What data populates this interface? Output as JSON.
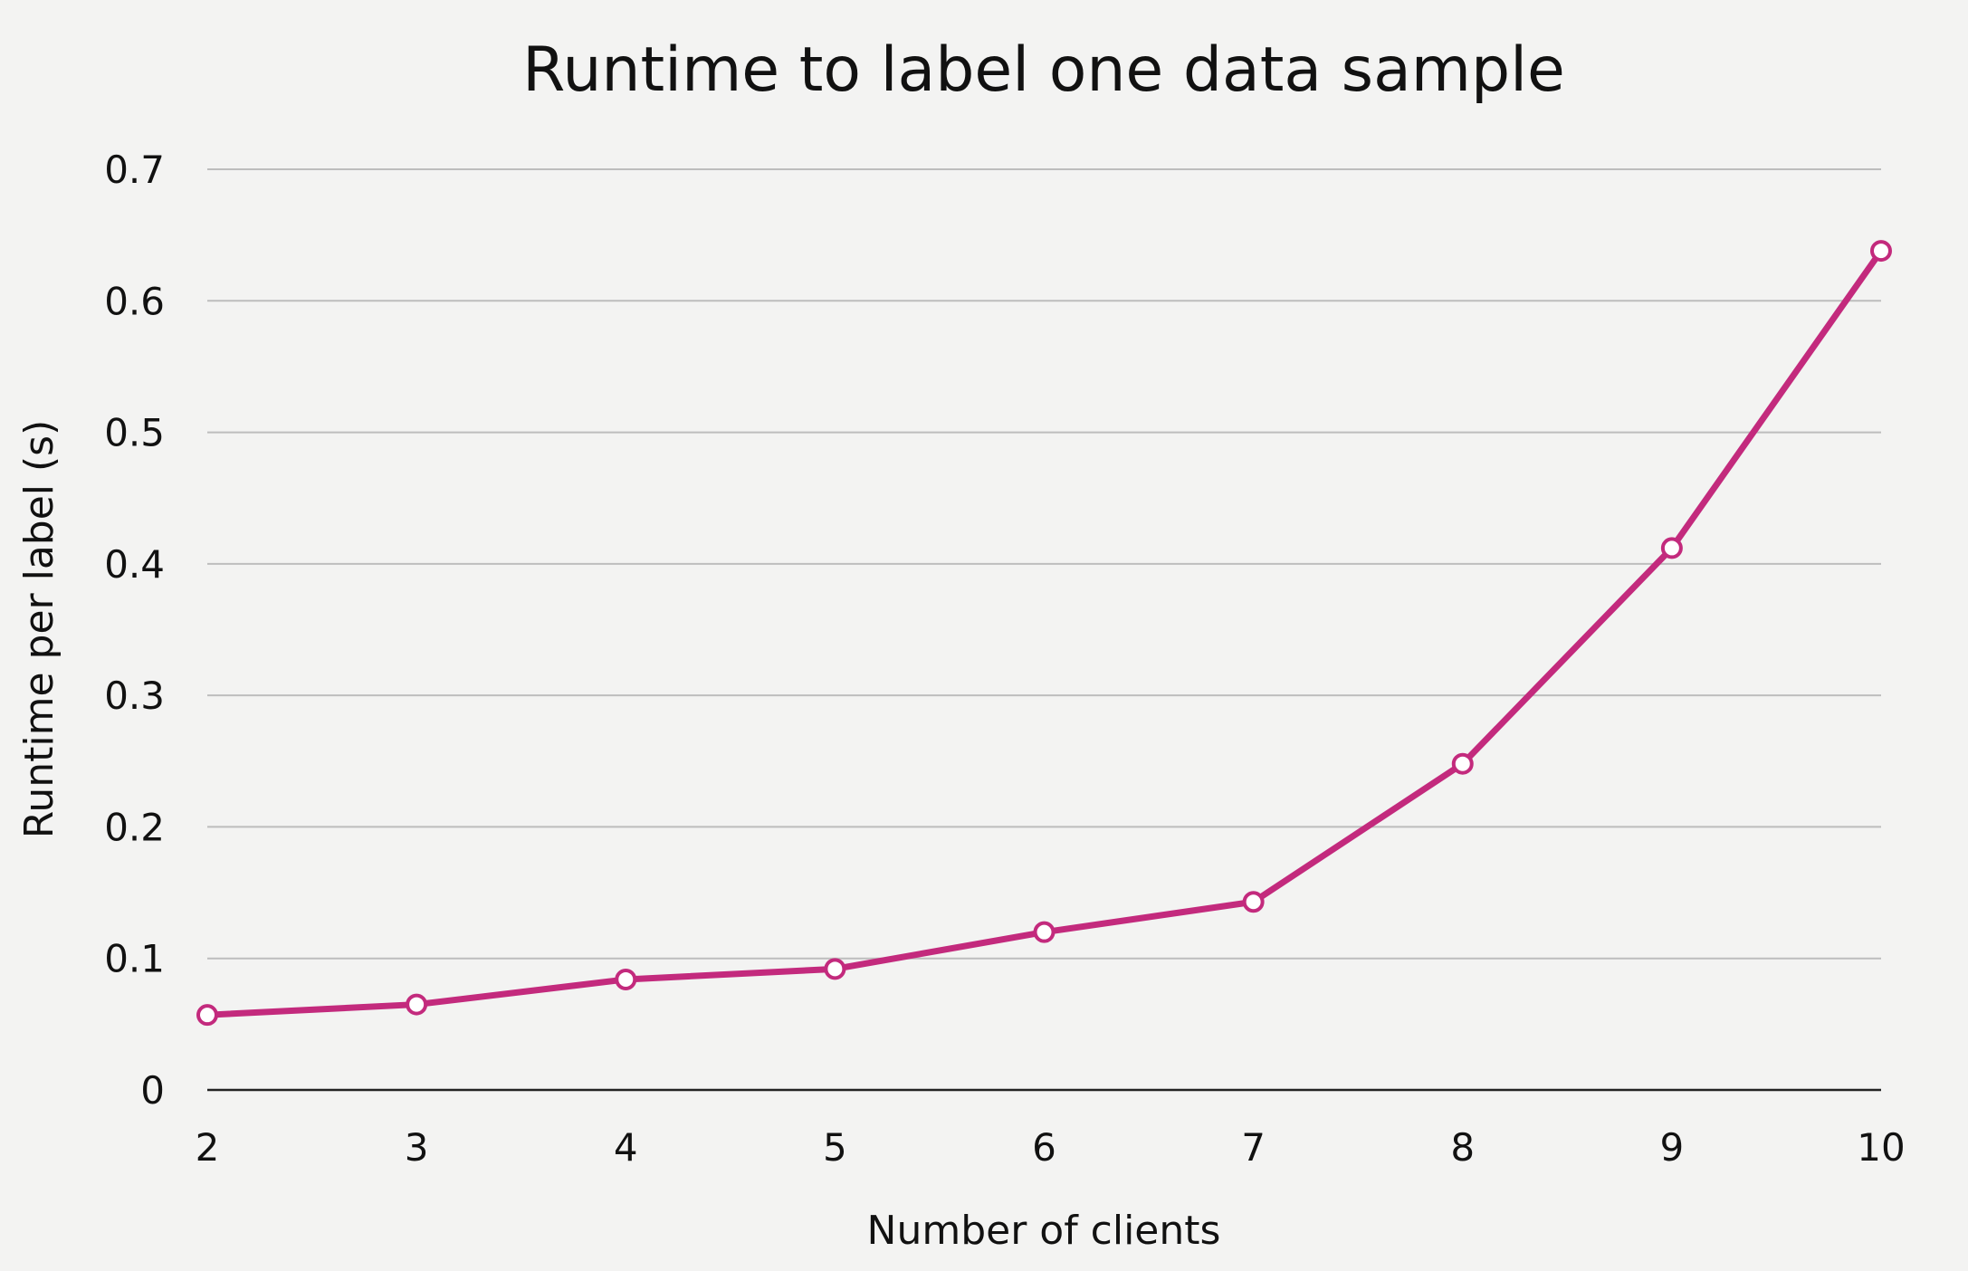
{
  "chart_data": {
    "type": "line",
    "title": "Runtime to label one data sample",
    "xlabel": "Number of clients",
    "ylabel": "Runtime per label (s)",
    "x": [
      2,
      3,
      4,
      5,
      6,
      7,
      8,
      9,
      10
    ],
    "series": [
      {
        "values": [
          0.057,
          0.065,
          0.084,
          0.092,
          0.12,
          0.143,
          0.248,
          0.412,
          0.638
        ]
      }
    ],
    "ylim": [
      0,
      0.7
    ],
    "yticks": [
      "0",
      "0.1",
      "0.2",
      "0.3",
      "0.4",
      "0.5",
      "0.6",
      "0.7"
    ],
    "xticks": [
      "2",
      "3",
      "4",
      "5",
      "6",
      "7",
      "8",
      "9",
      "10"
    ],
    "grid": "horizontal",
    "line_color": "#c32a7d",
    "marker_fill": "#ffffff"
  }
}
